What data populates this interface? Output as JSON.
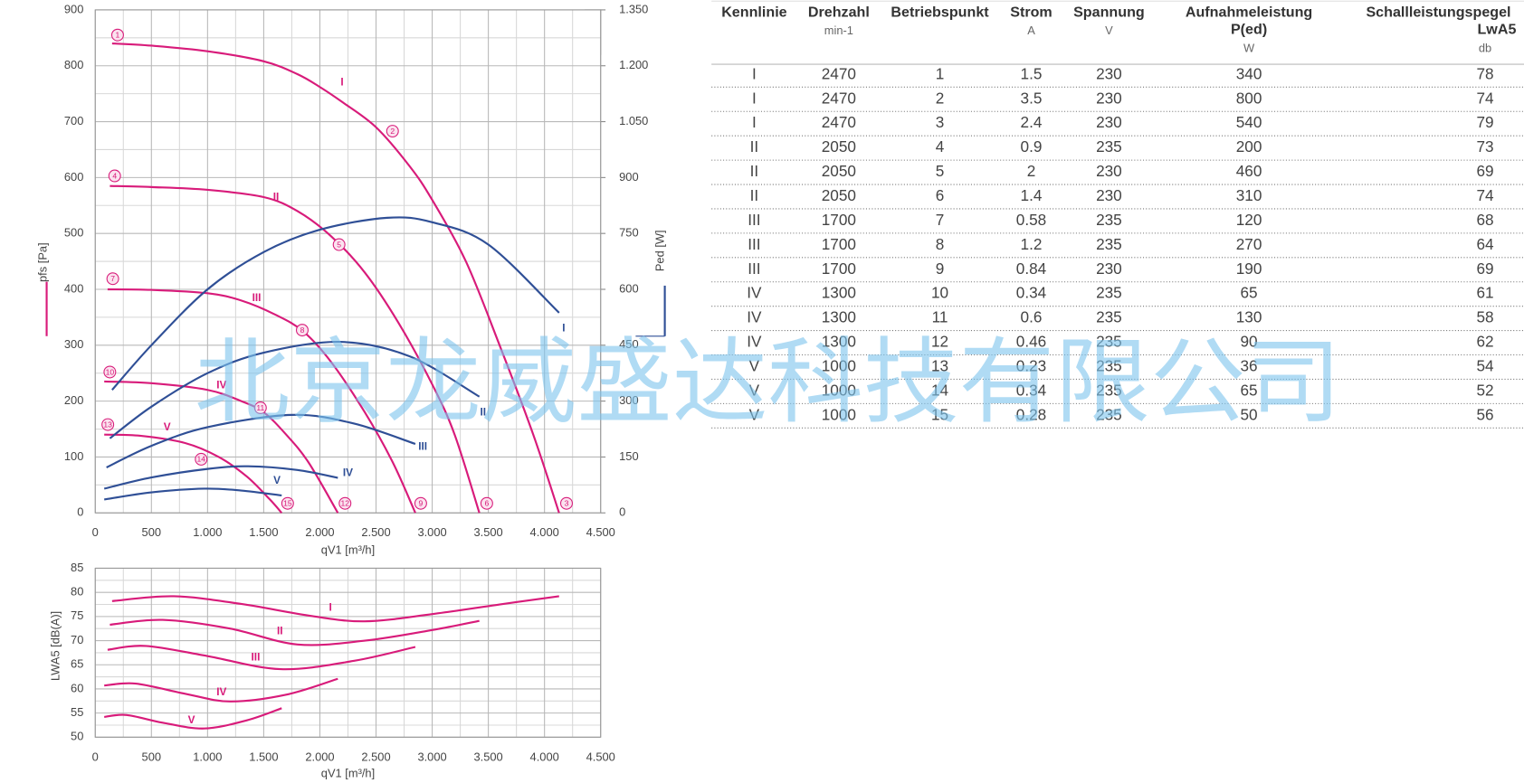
{
  "chart_data": [
    {
      "type": "line",
      "xlabel": "qV1 [m³/h]",
      "ylabel": "pfs [Pa]",
      "y2label": "Ped [W]",
      "code": "134328",
      "xlim": [
        0,
        4500
      ],
      "xticks": [
        0,
        500,
        {
          "value": 1000,
          "label": "1.000"
        },
        {
          "value": 1500,
          "label": "1.500"
        },
        {
          "value": 2000,
          "label": "2.000"
        },
        {
          "value": 2500,
          "label": "2.500"
        },
        {
          "value": 3000,
          "label": "3.000"
        },
        {
          "value": 3500,
          "label": "3.500"
        },
        {
          "value": 4000,
          "label": "4.000"
        },
        {
          "value": 4500,
          "label": "4.500"
        }
      ],
      "ylim": [
        0,
        900
      ],
      "yticks": [
        0,
        100,
        200,
        300,
        400,
        500,
        600,
        700,
        800,
        900
      ],
      "y2lim": [
        0,
        1350
      ],
      "y2ticks": [
        0,
        150,
        300,
        450,
        600,
        750,
        900,
        {
          "value": 1050,
          "label": "1.050"
        },
        {
          "value": 1200,
          "label": "1.200"
        },
        {
          "value": 1350,
          "label": "1.350"
        }
      ],
      "grid": true,
      "series": [
        {
          "name": "I",
          "color": "#d81b7a",
          "x": [
            150,
            500,
            1000,
            1500,
            1800,
            2000,
            2200,
            2500,
            2800,
            3000,
            3300,
            3600,
            3900,
            4130
          ],
          "values": [
            840,
            836,
            826,
            808,
            785,
            762,
            735,
            690,
            620,
            560,
            450,
            300,
            140,
            0
          ]
        },
        {
          "name": "II",
          "color": "#d81b7a",
          "x": [
            130,
            500,
            1000,
            1500,
            1800,
            2100,
            2400,
            2700,
            3000,
            3200,
            3420
          ],
          "values": [
            585,
            583,
            578,
            565,
            540,
            495,
            430,
            340,
            230,
            140,
            0
          ]
        },
        {
          "name": "III",
          "color": "#d81b7a",
          "x": [
            110,
            500,
            1000,
            1300,
            1600,
            1850,
            2100,
            2400,
            2650,
            2850
          ],
          "values": [
            400,
            399,
            393,
            380,
            355,
            325,
            270,
            180,
            90,
            0
          ]
        },
        {
          "name": "IV",
          "color": "#d81b7a",
          "x": [
            80,
            500,
            1000,
            1300,
            1500,
            1700,
            1900,
            2160
          ],
          "values": [
            235,
            232,
            220,
            200,
            180,
            140,
            90,
            0
          ]
        },
        {
          "name": "V",
          "color": "#d81b7a",
          "x": [
            80,
            400,
            800,
            1100,
            1350,
            1550,
            1660
          ],
          "values": [
            140,
            138,
            125,
            100,
            65,
            25,
            0
          ]
        },
        {
          "name": "I",
          "color": "#2f4f96",
          "axis": "y2",
          "x": [
            150,
            500,
            1000,
            1500,
            2000,
            2600,
            3000,
            3500,
            4130
          ],
          "values": [
            330,
            450,
            600,
            700,
            760,
            792,
            780,
            720,
            537
          ]
        },
        {
          "name": "II",
          "color": "#2f4f96",
          "axis": "y2",
          "x": [
            130,
            500,
            1000,
            1500,
            2180,
            2800,
            3420
          ],
          "values": [
            200,
            285,
            375,
            430,
            459,
            420,
            312
          ]
        },
        {
          "name": "III",
          "color": "#2f4f96",
          "axis": "y2",
          "x": [
            100,
            500,
            1000,
            1750,
            2300,
            2850
          ],
          "values": [
            122,
            180,
            230,
            263,
            240,
            185
          ]
        },
        {
          "name": "IV",
          "color": "#2f4f96",
          "axis": "y2",
          "x": [
            80,
            500,
            1000,
            1360,
            1800,
            2160
          ],
          "values": [
            65,
            95,
            118,
            125,
            115,
            94
          ]
        },
        {
          "name": "V",
          "color": "#2f4f96",
          "axis": "y2",
          "x": [
            80,
            500,
            970,
            1300,
            1660
          ],
          "values": [
            36,
            55,
            65,
            60,
            47
          ]
        }
      ],
      "points": [
        {
          "label": "1",
          "x": 199,
          "y": 855
        },
        {
          "label": "2",
          "x": 2647,
          "y": 683
        },
        {
          "label": "3",
          "x": 4196,
          "y": 17
        },
        {
          "label": "4",
          "x": 173,
          "y": 603
        },
        {
          "label": "5",
          "x": 2171,
          "y": 480
        },
        {
          "label": "6",
          "x": 3486,
          "y": 17
        },
        {
          "label": "7",
          "x": 156,
          "y": 419
        },
        {
          "label": "8",
          "x": 1843,
          "y": 327
        },
        {
          "label": "9",
          "x": 2898,
          "y": 17
        },
        {
          "label": "10",
          "x": 130,
          "y": 252
        },
        {
          "label": "11",
          "x": 1471,
          "y": 188
        },
        {
          "label": "12",
          "x": 2224,
          "y": 17
        },
        {
          "label": "13",
          "x": 112,
          "y": 158
        },
        {
          "label": "14",
          "x": 943,
          "y": 96
        },
        {
          "label": "15",
          "x": 1713,
          "y": 17
        }
      ]
    },
    {
      "type": "line",
      "xlabel": "qV1 [m³/h]",
      "ylabel": "LWA5 [dB(A)]",
      "xlim": [
        0,
        4500
      ],
      "xticks": [
        0,
        500,
        {
          "value": 1000,
          "label": "1.000"
        },
        {
          "value": 1500,
          "label": "1.500"
        },
        {
          "value": 2000,
          "label": "2.000"
        },
        {
          "value": 2500,
          "label": "2.500"
        },
        {
          "value": 3000,
          "label": "3.000"
        },
        {
          "value": 3500,
          "label": "3.500"
        },
        {
          "value": 4000,
          "label": "4.000"
        },
        {
          "value": 4500,
          "label": "4.500"
        }
      ],
      "ylim": [
        50,
        85
      ],
      "yticks": [
        50,
        55,
        60,
        65,
        70,
        75,
        80,
        85
      ],
      "grid": true,
      "series": [
        {
          "name": "I",
          "color": "#d81b7a",
          "x": [
            150,
            700,
            1300,
            1900,
            2400,
            3000,
            3600,
            4130
          ],
          "values": [
            78.2,
            79.2,
            77.6,
            75.2,
            74.0,
            75.5,
            77.5,
            79.2
          ]
        },
        {
          "name": "II",
          "color": "#d81b7a",
          "x": [
            130,
            600,
            1200,
            1800,
            2400,
            3000,
            3420
          ],
          "values": [
            73.3,
            74.3,
            72.5,
            69.2,
            70.0,
            72.2,
            74.1
          ]
        },
        {
          "name": "III",
          "color": "#d81b7a",
          "x": [
            110,
            450,
            1000,
            1650,
            2300,
            2850
          ],
          "values": [
            68.1,
            68.9,
            66.8,
            64.1,
            65.8,
            68.7
          ]
        },
        {
          "name": "IV",
          "color": "#d81b7a",
          "x": [
            80,
            360,
            800,
            1200,
            1700,
            2160
          ],
          "values": [
            60.7,
            61.1,
            59.0,
            57.4,
            58.8,
            62.1
          ]
        },
        {
          "name": "V",
          "color": "#d81b7a",
          "x": [
            80,
            280,
            600,
            970,
            1350,
            1660
          ],
          "values": [
            54.2,
            54.6,
            53.0,
            51.8,
            53.5,
            56.0
          ]
        }
      ]
    }
  ],
  "table": {
    "columns": [
      {
        "title": "Kennlinie"
      },
      {
        "title": "Drehzahl",
        "unit": "min-1"
      },
      {
        "title": "Betriebspunkt"
      },
      {
        "title": "Strom",
        "unit": "A"
      },
      {
        "title": "Spannung",
        "unit": "V"
      },
      {
        "title": "Aufnahmeleistung",
        "title2": "P(ed)",
        "unit": "W"
      },
      {
        "title": "Schallleistungspegel",
        "title2": "LwA5",
        "unit": "db"
      }
    ],
    "rows": [
      [
        "I",
        "2470",
        "1",
        "1.5",
        "230",
        "340",
        "78"
      ],
      [
        "I",
        "2470",
        "2",
        "3.5",
        "230",
        "800",
        "74"
      ],
      [
        "I",
        "2470",
        "3",
        "2.4",
        "230",
        "540",
        "79"
      ],
      [
        "II",
        "2050",
        "4",
        "0.9",
        "235",
        "200",
        "73"
      ],
      [
        "II",
        "2050",
        "5",
        "2",
        "230",
        "460",
        "69"
      ],
      [
        "II",
        "2050",
        "6",
        "1.4",
        "230",
        "310",
        "74"
      ],
      [
        "III",
        "1700",
        "7",
        "0.58",
        "235",
        "120",
        "68"
      ],
      [
        "III",
        "1700",
        "8",
        "1.2",
        "235",
        "270",
        "64"
      ],
      [
        "III",
        "1700",
        "9",
        "0.84",
        "230",
        "190",
        "69"
      ],
      [
        "IV",
        "1300",
        "10",
        "0.34",
        "235",
        "65",
        "61"
      ],
      [
        "IV",
        "1300",
        "11",
        "0.6",
        "235",
        "130",
        "58"
      ],
      [
        "IV",
        "1300",
        "12",
        "0.46",
        "235",
        "90",
        "62"
      ],
      [
        "V",
        "1000",
        "13",
        "0.23",
        "235",
        "36",
        "54"
      ],
      [
        "V",
        "1000",
        "14",
        "0.34",
        "235",
        "65",
        "52"
      ],
      [
        "V",
        "1000",
        "15",
        "0.28",
        "235",
        "50",
        "56"
      ]
    ]
  },
  "watermark": "北京龙威盛达科技有限公司"
}
